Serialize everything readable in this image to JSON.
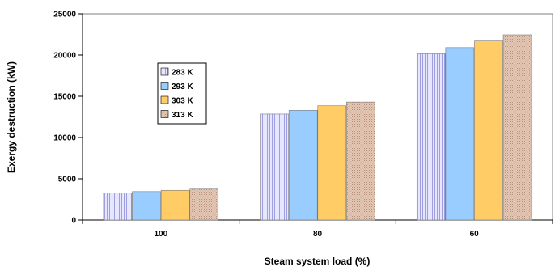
{
  "chart_data": {
    "type": "bar",
    "title": "",
    "xlabel": "Steam system load (%)",
    "ylabel": "Exergy destruction (kW)",
    "categories": [
      "100",
      "80",
      "60"
    ],
    "series": [
      {
        "name": "283 K",
        "values": [
          3300,
          12850,
          20150
        ],
        "color": "#d8d8ff",
        "pattern": "vertical-stripes"
      },
      {
        "name": "293 K",
        "values": [
          3450,
          13300,
          20900
        ],
        "color": "#99ccff",
        "pattern": "solid"
      },
      {
        "name": "303 K",
        "values": [
          3600,
          13850,
          21700
        ],
        "color": "#ffcc66",
        "pattern": "solid"
      },
      {
        "name": "313 K",
        "values": [
          3750,
          14300,
          22450
        ],
        "color": "#e8c8b8",
        "pattern": "dots"
      }
    ],
    "ylim": [
      0,
      25000
    ],
    "yticks": [
      "0",
      "5000",
      "10000",
      "15000",
      "20000",
      "25000"
    ],
    "grid": false,
    "legend_position": "upper-left inside plot"
  }
}
